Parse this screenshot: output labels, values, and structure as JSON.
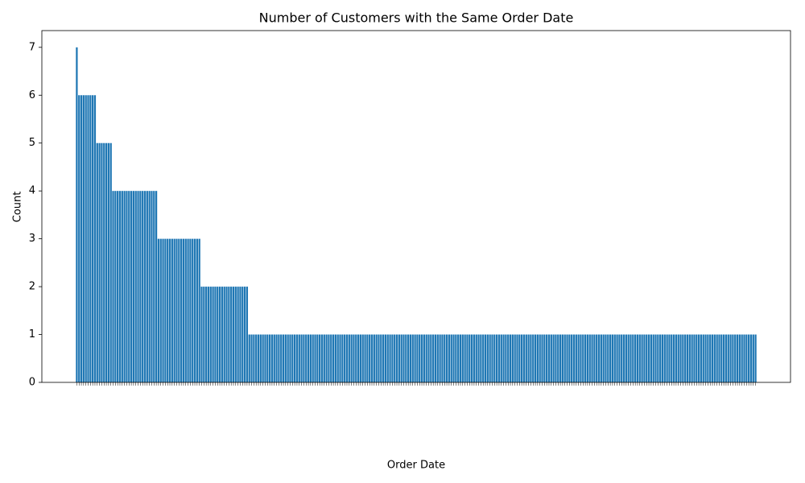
{
  "chart_data": {
    "type": "bar",
    "title": "Number of Customers with the Same Order Date",
    "x_label": "Order Date",
    "y_label": "Count",
    "color": "#1f77b4",
    "ylim": [
      0,
      7.35
    ],
    "yticks": [
      0,
      1,
      2,
      3,
      4,
      5,
      6,
      7
    ],
    "categories": [
      null,
      null,
      null,
      null,
      null,
      null,
      null,
      null,
      null,
      null,
      null,
      null,
      null,
      null,
      null,
      null,
      null,
      null,
      null,
      null,
      null,
      null,
      null,
      null,
      null,
      null,
      null,
      null,
      null,
      null,
      null,
      null,
      null,
      null,
      null,
      null,
      null,
      null,
      null,
      null,
      null,
      null,
      null,
      null,
      null,
      null,
      null,
      null,
      null,
      null,
      null,
      null,
      null,
      null,
      null,
      null,
      null,
      null,
      null,
      null,
      null,
      null,
      null,
      null,
      null,
      null,
      null,
      null,
      null,
      null,
      null,
      null,
      null,
      null,
      null,
      null,
      null,
      null,
      null,
      null,
      null,
      null,
      null,
      null,
      null,
      null,
      null,
      null,
      null,
      null,
      null,
      null,
      null,
      null,
      null,
      null,
      null,
      null,
      null,
      null,
      null,
      null,
      null,
      null,
      null,
      null,
      null,
      null,
      null,
      null,
      null,
      null,
      null,
      null,
      null,
      null,
      null,
      null,
      null,
      null,
      null,
      null,
      null,
      null,
      null,
      null,
      null,
      null,
      null,
      null,
      null,
      null,
      null,
      null,
      null,
      null,
      null,
      null,
      null,
      null,
      null,
      null,
      null,
      null,
      null,
      null,
      null,
      null,
      null,
      null,
      null,
      null,
      null,
      null,
      null,
      null,
      null,
      null,
      null,
      null,
      null,
      null,
      null,
      null,
      null,
      null,
      null,
      null,
      null,
      null,
      null,
      null,
      null,
      null,
      null,
      null,
      null,
      null,
      null,
      null,
      null,
      null,
      null,
      null,
      null,
      null,
      null,
      null,
      null,
      null,
      null,
      null,
      null,
      null,
      null,
      null,
      null,
      null,
      null,
      null,
      null,
      null,
      null,
      null,
      null,
      null,
      null,
      null,
      null,
      null,
      null,
      null,
      null,
      null,
      null,
      null,
      null,
      null,
      null,
      null,
      null,
      null,
      null,
      null,
      null,
      null,
      null,
      null,
      null,
      null,
      null,
      null,
      null,
      null,
      null,
      null,
      null,
      null,
      null,
      null,
      null,
      null,
      null,
      null,
      null,
      null,
      null,
      null,
      null,
      null,
      null,
      null,
      null,
      null,
      null,
      null,
      null,
      null,
      null,
      null,
      null,
      null,
      null,
      null,
      null,
      null,
      null,
      null,
      null,
      null,
      null,
      null,
      null,
      null,
      null,
      null,
      null,
      null,
      null,
      null,
      null,
      null,
      null,
      null,
      null,
      null,
      null,
      null,
      null,
      null,
      null,
      null,
      null,
      null,
      null,
      null,
      null,
      null,
      null,
      null
    ],
    "values": [
      7,
      6,
      6,
      6,
      6,
      6,
      6,
      6,
      6,
      5,
      5,
      5,
      5,
      5,
      5,
      5,
      4,
      4,
      4,
      4,
      4,
      4,
      4,
      4,
      4,
      4,
      4,
      4,
      4,
      4,
      4,
      4,
      4,
      4,
      4,
      4,
      3,
      3,
      3,
      3,
      3,
      3,
      3,
      3,
      3,
      3,
      3,
      3,
      3,
      3,
      3,
      3,
      3,
      3,
      3,
      2,
      2,
      2,
      2,
      2,
      2,
      2,
      2,
      2,
      2,
      2,
      2,
      2,
      2,
      2,
      2,
      2,
      2,
      2,
      2,
      2,
      1,
      1,
      1,
      1,
      1,
      1,
      1,
      1,
      1,
      1,
      1,
      1,
      1,
      1,
      1,
      1,
      1,
      1,
      1,
      1,
      1,
      1,
      1,
      1,
      1,
      1,
      1,
      1,
      1,
      1,
      1,
      1,
      1,
      1,
      1,
      1,
      1,
      1,
      1,
      1,
      1,
      1,
      1,
      1,
      1,
      1,
      1,
      1,
      1,
      1,
      1,
      1,
      1,
      1,
      1,
      1,
      1,
      1,
      1,
      1,
      1,
      1,
      1,
      1,
      1,
      1,
      1,
      1,
      1,
      1,
      1,
      1,
      1,
      1,
      1,
      1,
      1,
      1,
      1,
      1,
      1,
      1,
      1,
      1,
      1,
      1,
      1,
      1,
      1,
      1,
      1,
      1,
      1,
      1,
      1,
      1,
      1,
      1,
      1,
      1,
      1,
      1,
      1,
      1,
      1,
      1,
      1,
      1,
      1,
      1,
      1,
      1,
      1,
      1,
      1,
      1,
      1,
      1,
      1,
      1,
      1,
      1,
      1,
      1,
      1,
      1,
      1,
      1,
      1,
      1,
      1,
      1,
      1,
      1,
      1,
      1,
      1,
      1,
      1,
      1,
      1,
      1,
      1,
      1,
      1,
      1,
      1,
      1,
      1,
      1,
      1,
      1,
      1,
      1,
      1,
      1,
      1,
      1,
      1,
      1,
      1,
      1,
      1,
      1,
      1,
      1,
      1,
      1,
      1,
      1,
      1,
      1,
      1,
      1,
      1,
      1,
      1,
      1,
      1,
      1,
      1,
      1,
      1,
      1,
      1,
      1,
      1,
      1,
      1,
      1,
      1,
      1,
      1,
      1,
      1,
      1,
      1,
      1,
      1,
      1,
      1,
      1,
      1,
      1,
      1,
      1,
      1,
      1,
      1,
      1,
      1,
      1,
      1,
      1,
      1,
      1,
      1,
      1,
      1,
      1,
      1,
      1,
      1,
      1
    ]
  }
}
